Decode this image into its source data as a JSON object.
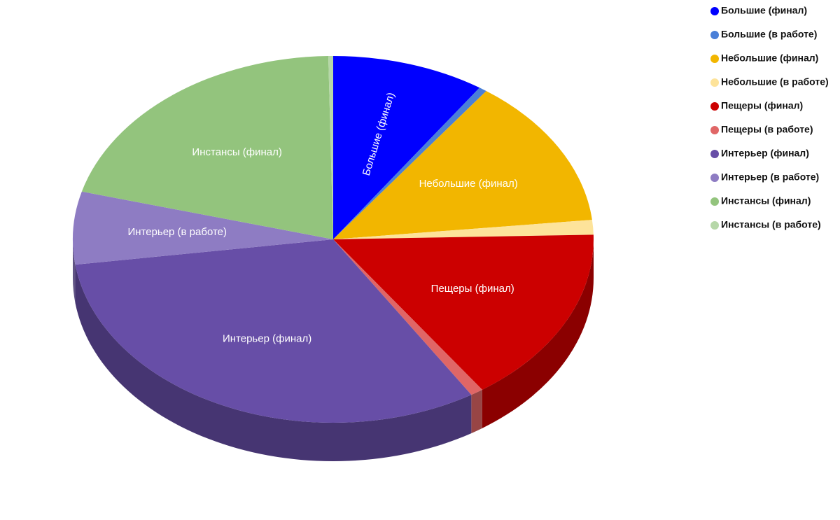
{
  "chart_data": {
    "type": "pie",
    "categories": [
      "Большие (финал)",
      "Большие (в работе)",
      "Небольшие (финал)",
      "Небольшие (в работе)",
      "Пещеры (финал)",
      "Пещеры (в работе)",
      "Интерьер (финал)",
      "Интерьер (в работе)",
      "Инстансы (финал)",
      "Инстансы (в работе)"
    ],
    "values": [
      9.5,
      0.5,
      13.3,
      1.3,
      15.7,
      0.8,
      31.7,
      6.4,
      20.5,
      0.3
    ],
    "colors": [
      "#0000ff",
      "#4a7fd8",
      "#f2b600",
      "#fde39a",
      "#cc0000",
      "#e06666",
      "#674ea7",
      "#8e7cc3",
      "#93c47d",
      "#b6d7a8"
    ],
    "legend": "top-right"
  }
}
